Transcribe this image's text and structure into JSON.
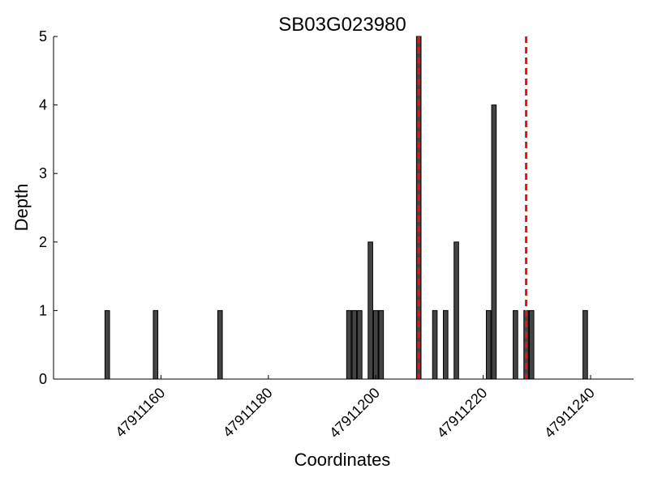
{
  "chart_data": {
    "type": "bar",
    "title": "SB03G023980",
    "xlabel": "Coordinates",
    "ylabel": "Depth",
    "xlim": [
      47911140,
      47911248
    ],
    "ylim": [
      0,
      5
    ],
    "xticks": [
      47911160,
      47911180,
      47911200,
      47911220,
      47911240
    ],
    "yticks": [
      0,
      1,
      2,
      3,
      4,
      5
    ],
    "grid": false,
    "bar_color": "#444444",
    "bar_edge_color": "#000000",
    "marker_color": "#ee1111",
    "points": [
      {
        "x": 47911150,
        "y": 1
      },
      {
        "x": 47911159,
        "y": 1
      },
      {
        "x": 47911171,
        "y": 1
      },
      {
        "x": 47911195,
        "y": 1
      },
      {
        "x": 47911196,
        "y": 1
      },
      {
        "x": 47911197,
        "y": 1
      },
      {
        "x": 47911199,
        "y": 2
      },
      {
        "x": 47911200,
        "y": 1
      },
      {
        "x": 47911201,
        "y": 1
      },
      {
        "x": 47911208,
        "y": 5
      },
      {
        "x": 47911211,
        "y": 1
      },
      {
        "x": 47911213,
        "y": 1
      },
      {
        "x": 47911215,
        "y": 2
      },
      {
        "x": 47911221,
        "y": 1
      },
      {
        "x": 47911222,
        "y": 4
      },
      {
        "x": 47911226,
        "y": 1
      },
      {
        "x": 47911228,
        "y": 1
      },
      {
        "x": 47911229,
        "y": 1
      },
      {
        "x": 47911239,
        "y": 1
      }
    ],
    "reference_lines": [
      47911208,
      47911228
    ]
  }
}
